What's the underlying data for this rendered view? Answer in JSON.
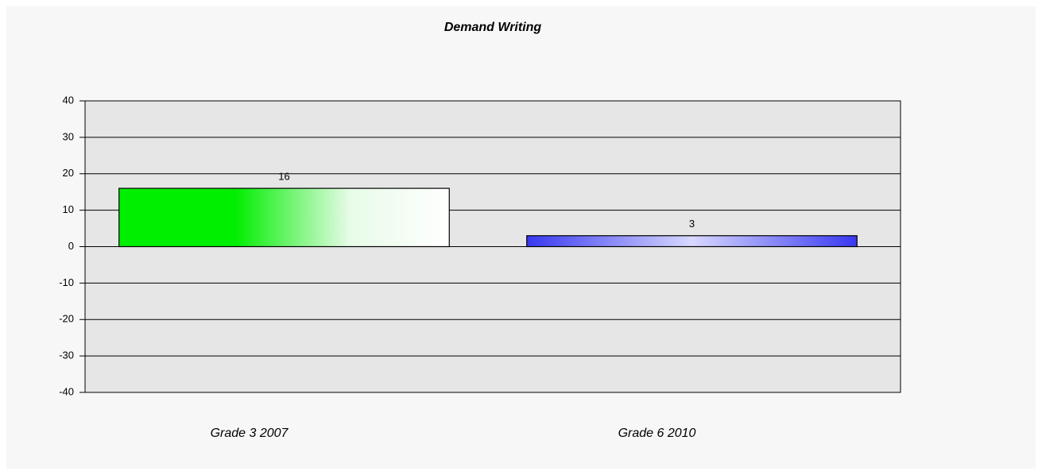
{
  "chart_data": {
    "type": "bar",
    "title": "Demand Writing",
    "categories": [
      "Grade 3 2007",
      "Grade 6 2010"
    ],
    "values": [
      16,
      3
    ],
    "colors": [
      "#00ee00",
      "#3838f0"
    ],
    "ylim": [
      -40,
      40
    ],
    "yticks": [
      -40,
      -30,
      -20,
      -10,
      0,
      10,
      20,
      30,
      40
    ],
    "grid": true
  }
}
